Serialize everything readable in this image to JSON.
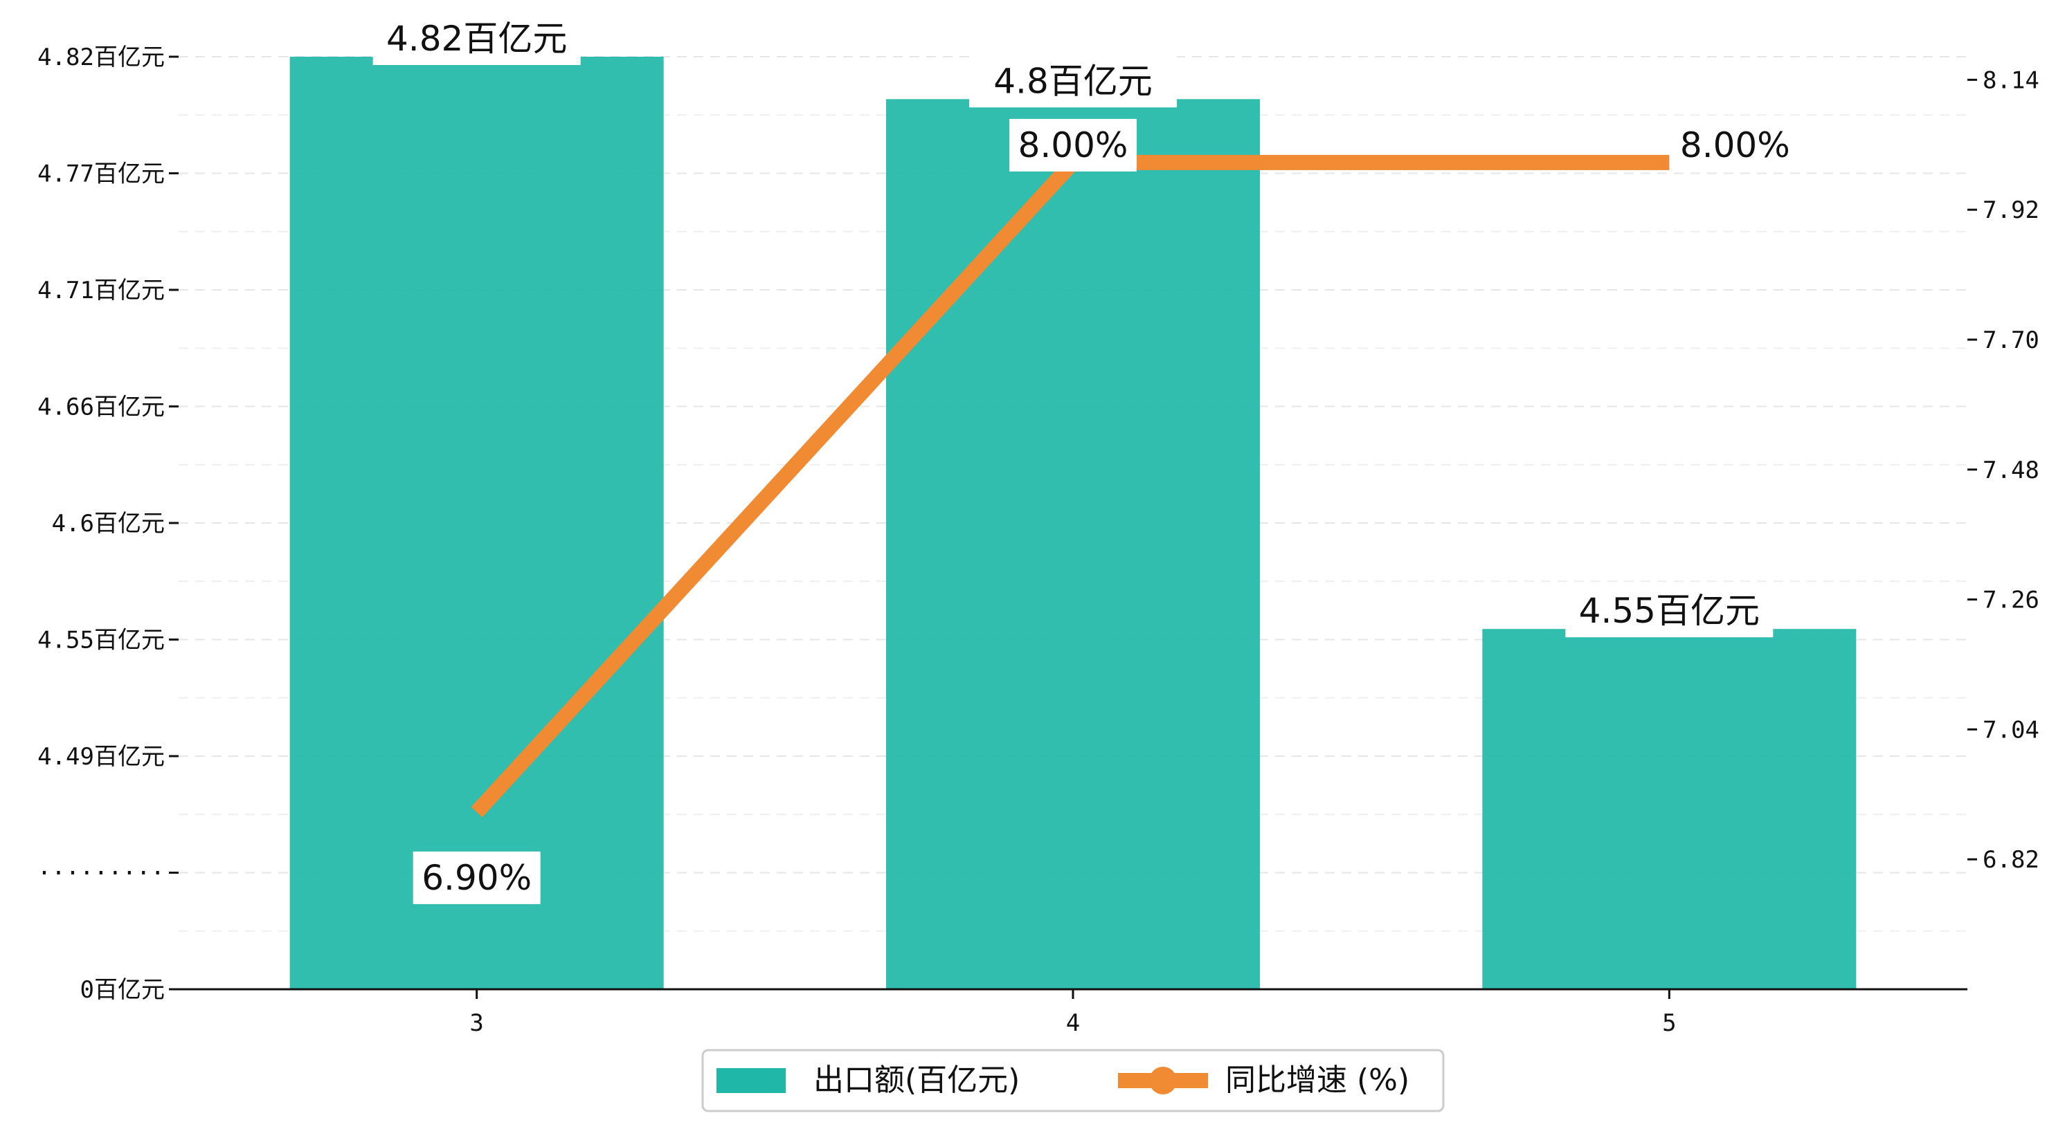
{
  "chart_data": {
    "type": "bar+line",
    "categories": [
      "3",
      "4",
      "5"
    ],
    "series": [
      {
        "name": "出口额(百亿元)",
        "kind": "bar",
        "axis": "left",
        "values": [
          4.82,
          4.8,
          4.55
        ],
        "labels": [
          "4.82百亿元",
          "4.8百亿元",
          "4.55百亿元"
        ],
        "color": "#1fb8a8"
      },
      {
        "name": "同比增速 (%)",
        "kind": "line",
        "axis": "right",
        "values": [
          6.9,
          8.0,
          8.0
        ],
        "labels": [
          "6.90%",
          "8.00%",
          "8.00%"
        ],
        "color": "#f08a33"
      }
    ],
    "left_axis": {
      "ticks": [
        "0百亿元",
        "·········",
        "4.49百亿元",
        "4.55百亿元",
        "4.6百亿元",
        "4.66百亿元",
        "4.71百亿元",
        "4.77百亿元",
        "4.82百亿元"
      ],
      "broken_axis": true
    },
    "right_axis": {
      "ticks": [
        6.82,
        7.04,
        7.26,
        7.48,
        7.7,
        7.92,
        8.14
      ],
      "tick_labels": [
        "6.82",
        "7.04",
        "7.26",
        "7.48",
        "7.70",
        "7.92",
        "8.14"
      ],
      "range": [
        6.6,
        8.24
      ]
    },
    "grid": true,
    "legend": "bottom-center"
  }
}
